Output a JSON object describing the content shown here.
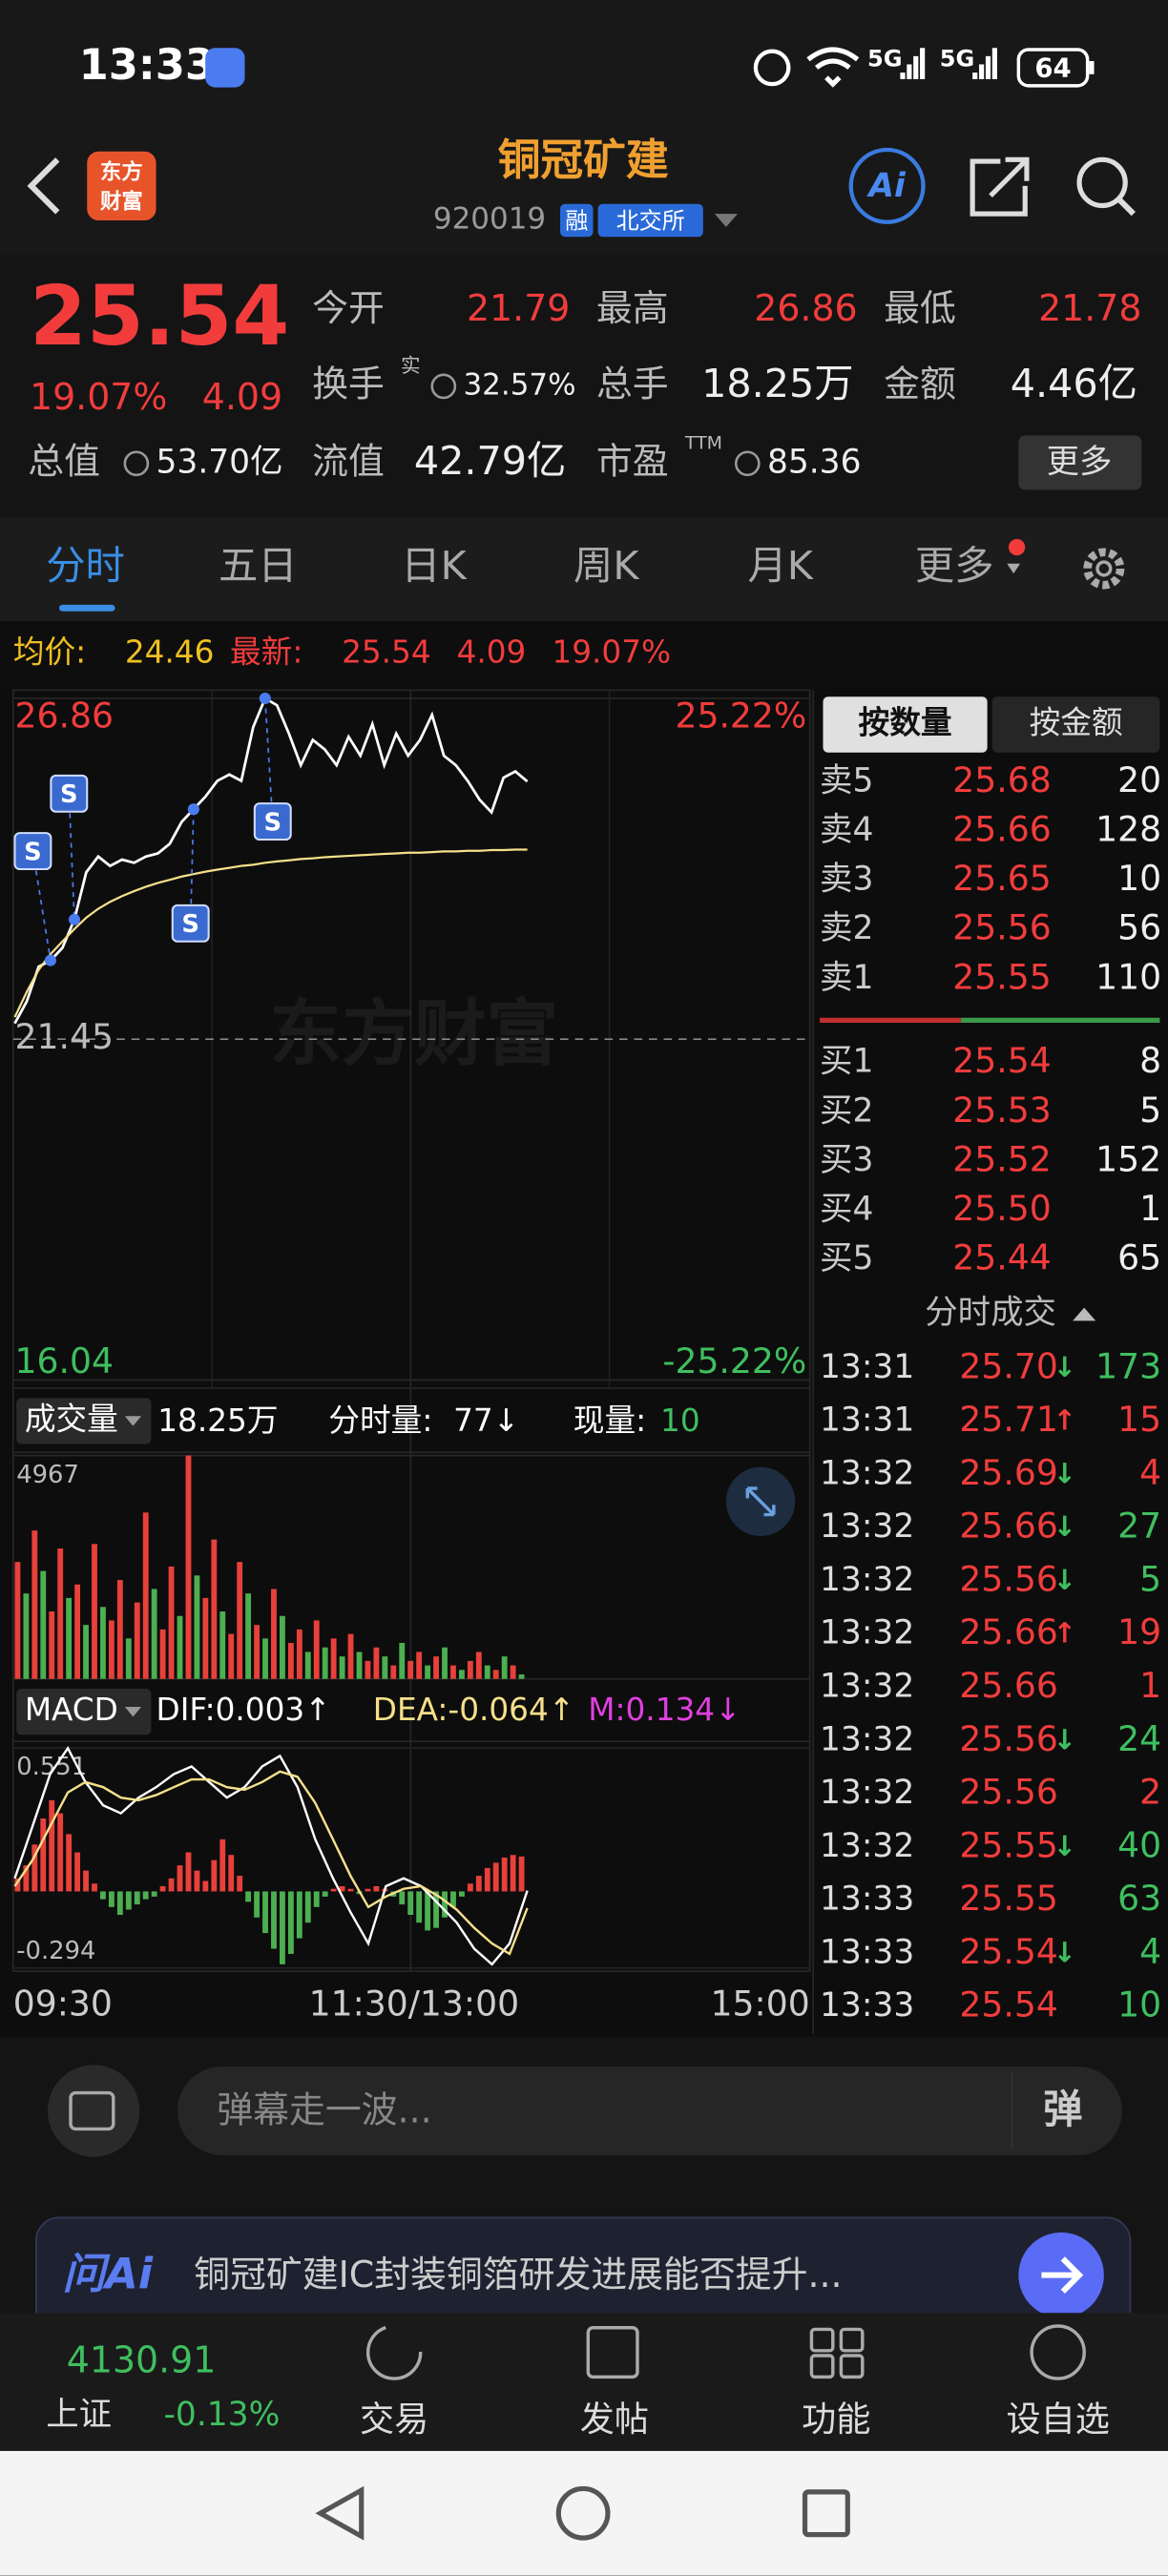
{
  "status_bar": {
    "time": "13:33",
    "network": "5G",
    "network2": "5G",
    "battery": "64"
  },
  "header": {
    "logo_lines": [
      "东方",
      "财富"
    ],
    "title": "铜冠矿建",
    "code": "920019",
    "badges": [
      "融",
      "北交所"
    ],
    "ai": "Ai"
  },
  "quote": {
    "price": "25.54",
    "change_pct": "19.07%",
    "change": "4.09",
    "fields": [
      {
        "label": "今开",
        "value": "21.79"
      },
      {
        "label": "最高",
        "value": "26.86"
      },
      {
        "label": "最低",
        "value": "21.78"
      },
      {
        "label": "换手",
        "sup": "实",
        "value": "32.57%"
      },
      {
        "label": "总手",
        "value": "18.25万"
      },
      {
        "label": "金额",
        "value": "4.46亿"
      },
      {
        "label": "总值",
        "value": "53.70亿"
      },
      {
        "label": "流值",
        "value": "42.79亿"
      },
      {
        "label": "市盈",
        "sup": "TTM",
        "value": "85.36"
      }
    ],
    "more": "更多"
  },
  "tabs": [
    "分时",
    "五日",
    "日K",
    "周K",
    "月K",
    "更多"
  ],
  "summary": {
    "avg_label": "均价:",
    "avg": "24.46",
    "latest_label": "最新:",
    "latest": "25.54",
    "change": "4.09",
    "change_pct": "19.07%"
  },
  "intraday": {
    "type": "line",
    "watermark": "东方财富",
    "ylim": [
      16.04,
      26.86
    ],
    "yticks": [
      16.04,
      21.45,
      26.86
    ],
    "ytick_colors": [
      "#3fbf5f",
      "#bbbbbb",
      "#f23c3c"
    ],
    "y2lim": [
      -25.22,
      25.22
    ],
    "y2ticks": [
      {
        "value": -25.22,
        "label": "-25.22%"
      },
      {
        "value": 25.22,
        "label": "25.22%"
      }
    ],
    "y2tick_colors": [
      "#3fbf5f",
      "#f23c3c"
    ],
    "x_labels": [
      "09:30",
      "11:30/13:00",
      "15:00"
    ],
    "series": [
      {
        "color": "#ffffff",
        "values": [
          21.7,
          22.05,
          22.6,
          22.7,
          22.9,
          23.35,
          24.1,
          24.35,
          24.2,
          24.3,
          24.25,
          24.35,
          24.4,
          24.55,
          24.9,
          25.1,
          25.3,
          25.55,
          25.65,
          25.55,
          26.4,
          26.86,
          26.75,
          26.3,
          25.8,
          26.2,
          26.05,
          25.8,
          26.25,
          25.95,
          26.45,
          25.8,
          26.3,
          25.95,
          26.2,
          26.6,
          25.95,
          25.8,
          25.55,
          25.25,
          25.05,
          25.6,
          25.7,
          25.54
        ]
      },
      {
        "color": "#f5e08a",
        "values": [
          21.8,
          22.2,
          22.55,
          22.8,
          23.0,
          23.2,
          23.38,
          23.52,
          23.63,
          23.72,
          23.8,
          23.87,
          23.93,
          23.98,
          24.03,
          24.07,
          24.11,
          24.14,
          24.17,
          24.2,
          24.22,
          24.25,
          24.27,
          24.29,
          24.31,
          24.32,
          24.34,
          24.35,
          24.36,
          24.37,
          24.38,
          24.39,
          24.4,
          24.41,
          24.41,
          24.42,
          24.43,
          24.43,
          24.44,
          24.44,
          24.45,
          24.45,
          24.46,
          24.46
        ]
      }
    ],
    "signals": [
      "S",
      "S",
      "S",
      "S"
    ]
  },
  "volume": {
    "type": "bar",
    "selector": "成交量",
    "total": "18.25万",
    "tick_volume_label": "分时量:",
    "tick_volume": "77↓",
    "current_label": "现量:",
    "current": "10",
    "ylim": [
      0,
      4967
    ],
    "yticks": [
      4967
    ],
    "series": [
      {
        "color": "#e8403a",
        "values": [
          2600,
          null,
          3300,
          null,
          1500,
          2900,
          null,
          2100,
          null,
          3000,
          null,
          1300,
          2200,
          null,
          1700,
          3700,
          null,
          1100,
          2500,
          null,
          4967,
          null,
          1800,
          3100,
          null,
          1000,
          2600,
          null,
          1200,
          null,
          2000,
          null,
          800,
          1100,
          null,
          1300,
          null,
          900,
          null,
          1000,
          null,
          400,
          700,
          null,
          300,
          null,
          400,
          600,
          null,
          500,
          null,
          300,
          null,
          400,
          600,
          null,
          200,
          null,
          300,
          null
        ]
      },
      {
        "color": "#4caf50",
        "values": [
          null,
          1900,
          null,
          2400,
          null,
          null,
          1800,
          null,
          1200,
          null,
          1600,
          null,
          null,
          900,
          null,
          null,
          2000,
          null,
          null,
          1400,
          null,
          2300,
          null,
          null,
          1500,
          null,
          null,
          1900,
          null,
          900,
          null,
          1400,
          null,
          null,
          600,
          null,
          700,
          null,
          500,
          null,
          600,
          null,
          null,
          500,
          null,
          800,
          null,
          null,
          300,
          null,
          700,
          null,
          200,
          null,
          null,
          300,
          null,
          500,
          null,
          100
        ]
      }
    ]
  },
  "macd": {
    "type": "macd",
    "selector": "MACD",
    "dif": "DIF:0.003↑",
    "dea": "DEA:-0.064↑",
    "m": "M:0.134↓",
    "ylim": [
      -0.294,
      0.551
    ],
    "yticks": [
      -0.294,
      0.551
    ],
    "series": [
      {
        "color": "#ffffff",
        "values": [
          0.05,
          0.25,
          0.45,
          0.55,
          0.42,
          0.33,
          0.3,
          0.36,
          0.4,
          0.45,
          0.48,
          0.42,
          0.36,
          0.4,
          0.48,
          0.52,
          0.4,
          0.2,
          0.05,
          -0.08,
          -0.2,
          0.02,
          0.05,
          0.02,
          -0.05,
          -0.12,
          -0.22,
          -0.28,
          -0.2,
          0.003
        ]
      },
      {
        "color": "#f5e08a",
        "values": [
          0.02,
          0.12,
          0.25,
          0.38,
          0.42,
          0.4,
          0.36,
          0.35,
          0.37,
          0.4,
          0.43,
          0.43,
          0.4,
          0.39,
          0.42,
          0.46,
          0.44,
          0.34,
          0.2,
          0.06,
          -0.06,
          -0.02,
          0.01,
          0.02,
          -0.02,
          -0.07,
          -0.14,
          -0.2,
          -0.24,
          -0.064
        ]
      }
    ],
    "histogram": {
      "up_color": "#e8403a",
      "down_color": "#4caf50",
      "values": [
        0.05,
        0.1,
        0.18,
        0.28,
        0.35,
        0.3,
        0.22,
        0.15,
        0.08,
        0.03,
        -0.03,
        -0.06,
        -0.09,
        -0.07,
        -0.05,
        -0.03,
        -0.02,
        0.02,
        0.05,
        0.1,
        0.15,
        0.08,
        0.04,
        0.12,
        0.2,
        0.14,
        0.06,
        -0.04,
        -0.1,
        -0.16,
        -0.22,
        -0.28,
        -0.24,
        -0.18,
        -0.12,
        -0.06,
        -0.02,
        0.01,
        0.02,
        0.01,
        -0.01,
        0.01,
        0.02,
        0.01,
        -0.02,
        -0.05,
        -0.09,
        -0.12,
        -0.15,
        -0.14,
        -0.1,
        -0.06,
        -0.02,
        0.03,
        0.06,
        0.09,
        0.11,
        0.13,
        0.14,
        0.134
      ]
    }
  },
  "order_book": {
    "tabs": [
      "按数量",
      "按金额"
    ],
    "asks": [
      {
        "label": "卖5",
        "price": "25.68",
        "qty": "20"
      },
      {
        "label": "卖4",
        "price": "25.66",
        "qty": "128"
      },
      {
        "label": "卖3",
        "price": "25.65",
        "qty": "10"
      },
      {
        "label": "卖2",
        "price": "25.56",
        "qty": "56"
      },
      {
        "label": "卖1",
        "price": "25.55",
        "qty": "110"
      }
    ],
    "bids": [
      {
        "label": "买1",
        "price": "25.54",
        "qty": "8"
      },
      {
        "label": "买2",
        "price": "25.53",
        "qty": "5"
      },
      {
        "label": "买3",
        "price": "25.52",
        "qty": "152"
      },
      {
        "label": "买4",
        "price": "25.50",
        "qty": "1"
      },
      {
        "label": "买5",
        "price": "25.44",
        "qty": "65"
      }
    ]
  },
  "trades": {
    "title": "分时成交",
    "rows": [
      {
        "time": "13:31",
        "price": "25.70",
        "arrow": "↓",
        "qty": "173",
        "color": "#3fbf5f"
      },
      {
        "time": "13:31",
        "price": "25.71",
        "arrow": "↑",
        "qty": "15",
        "color": "#f23c3c"
      },
      {
        "time": "13:32",
        "price": "25.69",
        "arrow": "↓",
        "qty": "4",
        "color": "#f23c3c"
      },
      {
        "time": "13:32",
        "price": "25.66",
        "arrow": "↓",
        "qty": "27",
        "color": "#3fbf5f"
      },
      {
        "time": "13:32",
        "price": "25.56",
        "arrow": "↓",
        "qty": "5",
        "color": "#3fbf5f"
      },
      {
        "time": "13:32",
        "price": "25.66",
        "arrow": "↑",
        "qty": "19",
        "color": "#f23c3c"
      },
      {
        "time": "13:32",
        "price": "25.66",
        "qty": "1",
        "color": "#f23c3c"
      },
      {
        "time": "13:32",
        "price": "25.56",
        "arrow": "↓",
        "qty": "24",
        "color": "#3fbf5f"
      },
      {
        "time": "13:32",
        "price": "25.56",
        "qty": "2",
        "color": "#f23c3c"
      },
      {
        "time": "13:32",
        "price": "25.55",
        "arrow": "↓",
        "qty": "40",
        "color": "#3fbf5f"
      },
      {
        "time": "13:33",
        "price": "25.55",
        "qty": "63",
        "color": "#3fbf5f"
      },
      {
        "time": "13:33",
        "price": "25.54",
        "arrow": "↓",
        "qty": "4",
        "color": "#3fbf5f"
      },
      {
        "time": "13:33",
        "price": "25.54",
        "qty": "10",
        "color": "#3fbf5f"
      }
    ]
  },
  "comment_bar": {
    "placeholder": "弹幕走一波...",
    "button": "弹"
  },
  "ad": {
    "brand": "问Ai",
    "text": "铜冠矿建IC封装铜箔研发进展能否提升..."
  },
  "bottom_nav": {
    "index_value": "4130.91",
    "index_name": "上证",
    "index_change": "-0.13%",
    "items": [
      "交易",
      "发帖",
      "功能",
      "设自选"
    ]
  }
}
